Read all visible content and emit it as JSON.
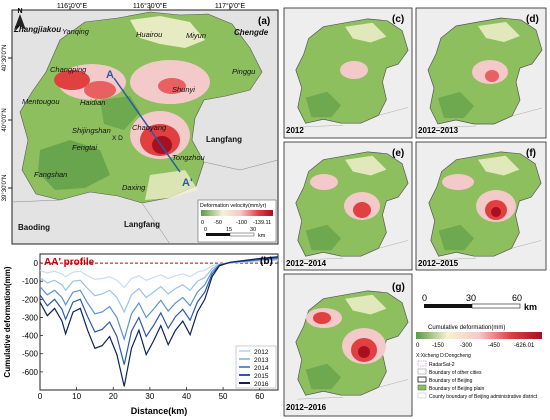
{
  "panel_a": {
    "label": "(a)",
    "lon_ticks": [
      "116°0'0\"E",
      "116°30'0\"E",
      "117°0'0\"E"
    ],
    "lat_ticks": [
      "40°30'0\"N",
      "40°0'0\"N",
      "39°30'0\"N"
    ],
    "north": "N",
    "places": {
      "zhangjiakou": "Zhangjiakou",
      "yanqing": "Yanqing",
      "huairou": "Huairou",
      "miyun": "Miyun",
      "chengde": "Chengde",
      "changping": "Changping",
      "shunyi": "Shunyi",
      "pinggu": "Pinggu",
      "mentougou": "Mentougou",
      "haidian": "Haidian",
      "shijingshan": "Shijingshan",
      "xd": "X D",
      "chaoyang": "Chaoyang",
      "fengtai": "Fengtai",
      "tongzhou": "Tongzhou",
      "langfang_e": "Langfang",
      "fangshan": "Fangshan",
      "daxing": "Daxing",
      "baoding": "Baoding",
      "langfang_s": "Langfang"
    },
    "profile_start": "A",
    "profile_end": "A'",
    "legend": {
      "title": "Deformation velocity(mm/yr)",
      "ticks": [
        "0",
        "-50",
        "-100",
        "-139.11"
      ]
    },
    "scale": {
      "ticks": [
        "0",
        "15",
        "30"
      ],
      "unit": "km"
    }
  },
  "panel_b": {
    "label": "(b)",
    "title": "AA' profile",
    "ylabel": "Cumulative deformation(mm)",
    "xlabel": "Distance(km)",
    "legend": [
      "2012",
      "2013",
      "2014",
      "2015",
      "2016"
    ]
  },
  "chart_data": {
    "type": "line",
    "title": "AA' profile",
    "xlabel": "Distance(km)",
    "ylabel": "Cumulative deformation(mm)",
    "xlim": [
      0,
      65
    ],
    "ylim": [
      -700,
      50
    ],
    "x_ticks": [
      0,
      10,
      20,
      30,
      40,
      50,
      60
    ],
    "y_ticks": [
      0,
      -100,
      -200,
      -300,
      -400,
      -500,
      -600
    ],
    "reference_line": 0,
    "x": [
      0,
      2,
      4,
      6,
      7,
      9,
      11,
      13,
      15,
      17,
      19,
      21,
      23,
      25,
      27,
      29,
      31,
      33,
      35,
      37,
      39,
      41,
      43,
      45,
      47,
      49,
      52,
      56,
      60,
      65
    ],
    "series": [
      {
        "name": "2012",
        "color": "#c9ddf2",
        "values": [
          -40,
          -55,
          -45,
          -60,
          -75,
          -50,
          -45,
          -70,
          -90,
          -85,
          -75,
          -95,
          -135,
          -85,
          -70,
          -95,
          -80,
          -65,
          -85,
          -70,
          -60,
          -75,
          -50,
          -40,
          -15,
          -5,
          0,
          5,
          10,
          15
        ]
      },
      {
        "name": "2013",
        "color": "#9cc2e8",
        "values": [
          -80,
          -110,
          -95,
          -120,
          -150,
          -100,
          -95,
          -140,
          -180,
          -170,
          -150,
          -190,
          -270,
          -175,
          -140,
          -190,
          -160,
          -130,
          -170,
          -140,
          -120,
          -150,
          -100,
          -80,
          -30,
          -8,
          2,
          8,
          15,
          20
        ]
      },
      {
        "name": "2014",
        "color": "#5b93d0",
        "values": [
          -130,
          -175,
          -150,
          -190,
          -230,
          -160,
          -150,
          -220,
          -280,
          -270,
          -240,
          -300,
          -420,
          -280,
          -220,
          -300,
          -255,
          -205,
          -265,
          -220,
          -190,
          -235,
          -160,
          -120,
          -45,
          -10,
          3,
          10,
          18,
          25
        ]
      },
      {
        "name": "2015",
        "color": "#2a5aa8",
        "values": [
          -175,
          -235,
          -200,
          -255,
          -310,
          -215,
          -200,
          -295,
          -380,
          -365,
          -325,
          -405,
          -560,
          -375,
          -300,
          -405,
          -345,
          -275,
          -360,
          -295,
          -255,
          -315,
          -215,
          -160,
          -60,
          -12,
          4,
          12,
          20,
          30
        ]
      },
      {
        "name": "2016",
        "color": "#0d2458",
        "values": [
          -215,
          -290,
          -250,
          -320,
          -390,
          -270,
          -250,
          -370,
          -470,
          -455,
          -405,
          -505,
          -680,
          -470,
          -370,
          -505,
          -430,
          -345,
          -450,
          -370,
          -320,
          -395,
          -270,
          -200,
          -75,
          -15,
          5,
          15,
          25,
          35
        ]
      }
    ]
  },
  "panels": [
    {
      "label": "(c)",
      "year": "2012"
    },
    {
      "label": "(d)",
      "year": "2012–2013"
    },
    {
      "label": "(e)",
      "year": "2012–2014"
    },
    {
      "label": "(f)",
      "year": "2012–2015"
    },
    {
      "label": "(g)",
      "year": "2012–2016"
    }
  ],
  "right_scale": {
    "ticks": [
      "0",
      "30",
      "60"
    ],
    "unit": "km"
  },
  "right_legend": {
    "title": "Cumulative deformation(mm)",
    "ticks": [
      "0",
      "-150",
      "-300",
      "-450",
      "-626.01"
    ],
    "abbrev": "X:Xicheng    D:Dongcheng",
    "items": [
      "RadarSat-2",
      "Boundary of other cities",
      "Boundary of Beijing",
      "Boundary of Beijing plain",
      "County boundary of Beijing administrative district"
    ]
  },
  "colors": {
    "green": "#8dbf5e",
    "dark_green": "#5a9a46",
    "pink": "#f4c9c9",
    "red": "#e04040",
    "dark_red": "#a81020",
    "cream": "#f6f2d2"
  }
}
